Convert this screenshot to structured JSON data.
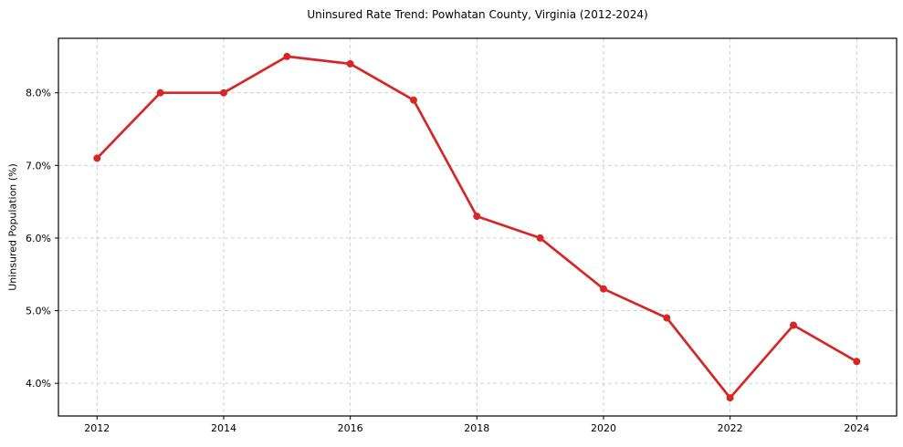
{
  "chart_data": {
    "type": "line",
    "title": "Uninsured Rate Trend: Powhatan County, Virginia (2012-2024)",
    "xlabel": "",
    "ylabel": "Uninsured Population (%)",
    "x": [
      2012,
      2013,
      2014,
      2015,
      2016,
      2017,
      2018,
      2019,
      2020,
      2021,
      2022,
      2023,
      2024
    ],
    "values": [
      7.1,
      8.0,
      8.0,
      8.5,
      8.4,
      7.9,
      6.3,
      6.0,
      5.3,
      4.9,
      3.8,
      4.8,
      4.3
    ],
    "series_name": "Uninsured Population (%)",
    "xticks": {
      "values": [
        2012,
        2014,
        2016,
        2018,
        2020,
        2022,
        2024
      ],
      "labels": [
        "2012",
        "2014",
        "2016",
        "2018",
        "2020",
        "2022",
        "2024"
      ]
    },
    "yticks": {
      "values": [
        4,
        5,
        6,
        7,
        8
      ],
      "labels": [
        "4.0%",
        "5.0%",
        "6.0%",
        "7.0%",
        "8.0%"
      ]
    },
    "xlim": [
      2011.39,
      2024.63
    ],
    "ylim": [
      3.55,
      8.75
    ],
    "grid": true,
    "grid_style": "dashed",
    "legend": "none",
    "marker": "circle",
    "colors": {
      "line": "#d62728",
      "marker": "#d62728",
      "grid": "#cccccc",
      "axis": "#000000",
      "text": "#000000",
      "background": "#ffffff"
    }
  }
}
